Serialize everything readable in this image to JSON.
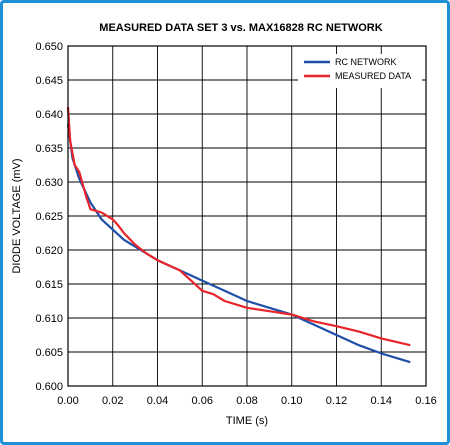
{
  "chart_data": {
    "type": "line",
    "title": "MEASURED DATA SET 3 vs. MAX16828 RC NETWORK",
    "xlabel": "TIME (s)",
    "ylabel": "DIODE VOLTAGE (mV)",
    "xlim": [
      0.0,
      0.16
    ],
    "ylim": [
      0.6,
      0.65
    ],
    "x_ticks": [
      "0.00",
      "0.02",
      "0.04",
      "0.06",
      "0.08",
      "0.10",
      "0.12",
      "0.14",
      "0.16"
    ],
    "y_ticks": [
      "0.600",
      "0.605",
      "0.610",
      "0.615",
      "0.620",
      "0.625",
      "0.630",
      "0.635",
      "0.640",
      "0.645",
      "0.650"
    ],
    "grid": true,
    "legend_position": "top-right",
    "series": [
      {
        "name": "RC NETWORK",
        "color": "#1f4fa8",
        "x": [
          0.0,
          0.002,
          0.005,
          0.01,
          0.015,
          0.02,
          0.025,
          0.03,
          0.04,
          0.05,
          0.06,
          0.07,
          0.08,
          0.09,
          0.1,
          0.11,
          0.12,
          0.13,
          0.14,
          0.153
        ],
        "y": [
          0.6385,
          0.6335,
          0.6305,
          0.627,
          0.6245,
          0.623,
          0.6215,
          0.6205,
          0.6185,
          0.617,
          0.6155,
          0.614,
          0.6125,
          0.6115,
          0.6105,
          0.609,
          0.6075,
          0.606,
          0.6048,
          0.6035
        ]
      },
      {
        "name": "MEASURED DATA",
        "color": "#e8252a",
        "x": [
          0.0,
          0.001,
          0.003,
          0.005,
          0.008,
          0.01,
          0.015,
          0.02,
          0.022,
          0.025,
          0.03,
          0.035,
          0.04,
          0.05,
          0.055,
          0.06,
          0.065,
          0.07,
          0.08,
          0.09,
          0.1,
          0.11,
          0.12,
          0.13,
          0.14,
          0.153
        ],
        "y": [
          0.641,
          0.636,
          0.6325,
          0.6315,
          0.628,
          0.626,
          0.6255,
          0.6245,
          0.6238,
          0.6225,
          0.6208,
          0.6195,
          0.6185,
          0.617,
          0.6155,
          0.614,
          0.6135,
          0.6125,
          0.6115,
          0.611,
          0.6105,
          0.6095,
          0.6088,
          0.608,
          0.607,
          0.606
        ]
      }
    ]
  }
}
